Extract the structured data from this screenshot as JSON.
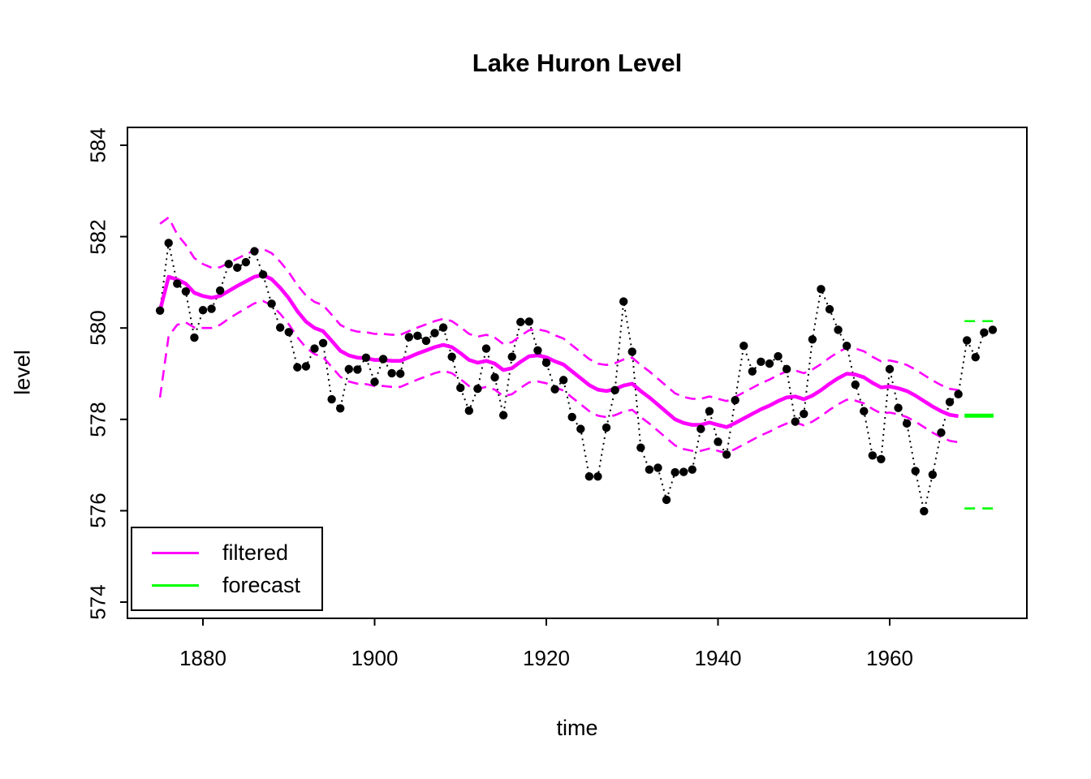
{
  "chart_data": {
    "type": "line",
    "title": "Lake Huron Level",
    "xlabel": "time",
    "ylabel": "level",
    "x_ticks": [
      1880,
      1900,
      1920,
      1940,
      1960
    ],
    "y_ticks": [
      574,
      576,
      578,
      580,
      582,
      584
    ],
    "xlim": [
      1871.2,
      1976.0
    ],
    "ylim": [
      573.65,
      584.39
    ],
    "grid": false,
    "legend_position": "bottom-left",
    "legend": [
      {
        "label": "filtered",
        "color": "#FF00FF"
      },
      {
        "label": "forecast",
        "color": "#00FF00"
      }
    ],
    "colors": {
      "observed": "#000000",
      "filtered": "#FF00FF",
      "band": "#FF00FF",
      "forecast": "#00FF00"
    },
    "observed": {
      "style": "dotted-line-with-points",
      "start_year": 1875,
      "values": [
        580.38,
        581.86,
        580.97,
        580.8,
        579.79,
        580.39,
        580.42,
        580.82,
        581.4,
        581.32,
        581.44,
        581.68,
        581.17,
        580.53,
        580.01,
        579.91,
        579.14,
        579.16,
        579.55,
        579.67,
        578.44,
        578.24,
        579.1,
        579.09,
        579.35,
        578.82,
        579.32,
        579.01,
        579.0,
        579.8,
        579.83,
        579.72,
        579.89,
        580.01,
        579.37,
        578.69,
        578.19,
        578.67,
        579.55,
        578.92,
        578.09,
        579.37,
        580.13,
        580.14,
        579.51,
        579.24,
        578.66,
        578.86,
        578.05,
        577.79,
        576.75,
        576.75,
        577.82,
        578.64,
        580.58,
        579.48,
        577.38,
        576.9,
        576.94,
        576.24,
        576.84,
        576.85,
        576.9,
        577.79,
        578.18,
        577.51,
        577.23,
        578.42,
        579.61,
        579.05,
        579.26,
        579.22,
        579.38,
        579.1,
        577.95,
        578.12,
        579.75,
        580.85,
        580.41,
        579.96,
        579.61,
        578.76,
        578.18,
        577.21,
        577.13,
        579.1,
        578.25,
        577.91,
        576.87,
        575.99,
        576.79,
        577.71,
        578.38,
        578.55,
        579.73,
        579.36,
        579.9,
        579.96
      ]
    },
    "filtered": {
      "style": "thick-solid",
      "start_year": 1875,
      "values": [
        580.38,
        581.12,
        581.06,
        580.97,
        580.77,
        580.7,
        580.66,
        580.7,
        580.81,
        580.92,
        581.02,
        581.12,
        581.16,
        581.07,
        580.88,
        580.65,
        580.37,
        580.14,
        580.0,
        579.93,
        579.72,
        579.5,
        579.4,
        579.35,
        579.34,
        579.3,
        579.3,
        579.28,
        579.28,
        579.36,
        579.44,
        579.51,
        579.58,
        579.63,
        579.58,
        579.45,
        579.3,
        579.24,
        579.28,
        579.22,
        579.08,
        579.12,
        579.26,
        579.38,
        579.4,
        579.36,
        579.27,
        579.2,
        579.05,
        578.9,
        578.75,
        578.65,
        578.62,
        578.66,
        578.74,
        578.78,
        578.62,
        578.48,
        578.32,
        578.16,
        578.0,
        577.92,
        577.88,
        577.88,
        577.93,
        577.88,
        577.83,
        577.92,
        578.02,
        578.12,
        578.22,
        578.3,
        578.4,
        578.48,
        578.5,
        578.44,
        578.52,
        578.64,
        578.78,
        578.9,
        579.0,
        578.98,
        578.92,
        578.8,
        578.7,
        578.72,
        578.68,
        578.62,
        578.52,
        578.4,
        578.28,
        578.18,
        578.1,
        578.07
      ],
      "band_halfwidth": [
        1.9,
        1.3,
        0.99,
        0.85,
        0.76,
        0.7,
        0.66,
        0.63,
        0.61,
        0.6,
        0.59,
        0.58,
        0.57,
        0.57,
        0.57,
        0.57,
        0.57,
        0.57,
        0.57,
        0.57,
        0.57,
        0.57,
        0.57,
        0.57,
        0.57,
        0.57,
        0.57,
        0.57,
        0.57,
        0.57,
        0.57,
        0.57,
        0.57,
        0.57,
        0.57,
        0.57,
        0.57,
        0.57,
        0.57,
        0.57,
        0.57,
        0.57,
        0.57,
        0.57,
        0.57,
        0.57,
        0.57,
        0.57,
        0.57,
        0.57,
        0.57,
        0.57,
        0.57,
        0.57,
        0.57,
        0.57,
        0.57,
        0.57,
        0.57,
        0.57,
        0.57,
        0.57,
        0.57,
        0.57,
        0.57,
        0.57,
        0.57,
        0.57,
        0.57,
        0.57,
        0.57,
        0.57,
        0.57,
        0.57,
        0.57,
        0.57,
        0.57,
        0.57,
        0.57,
        0.57,
        0.57,
        0.57,
        0.57,
        0.57,
        0.57,
        0.57,
        0.57,
        0.57,
        0.57,
        0.57,
        0.57,
        0.57,
        0.57,
        0.57
      ]
    },
    "forecast": {
      "style": "thick-solid-with-dashed-bounds",
      "years": [
        1969,
        1970,
        1971,
        1972
      ],
      "mean": 578.08,
      "upper": 580.15,
      "lower": 576.05
    }
  }
}
